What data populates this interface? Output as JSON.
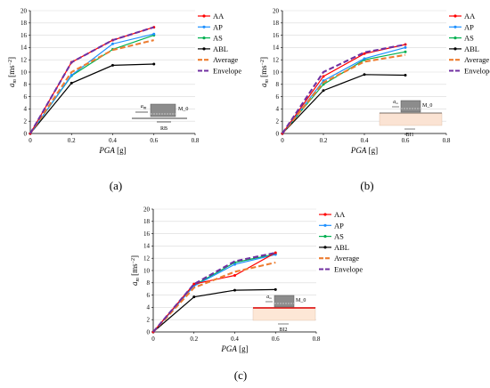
{
  "legend_entries": [
    {
      "label": "AA",
      "color": "#ff0000",
      "marker": "dot"
    },
    {
      "label": "AP",
      "color": "#1e90ff",
      "marker": "dot"
    },
    {
      "label": "AS",
      "color": "#00b050",
      "marker": "dot"
    },
    {
      "label": "ABL",
      "color": "#000000",
      "marker": "dot"
    },
    {
      "label": "Average",
      "color": "#ed7d31",
      "marker": "dash"
    },
    {
      "label": "Envelope",
      "color": "#7030a0",
      "marker": "dash"
    }
  ],
  "chart_data": [
    {
      "type": "line",
      "caption": "(a)",
      "xlabel": "PGA [g]",
      "ylabel": "a_m [ms^-2]",
      "xlim": [
        0,
        0.8
      ],
      "ylim": [
        0,
        20
      ],
      "xticks": [
        "0",
        "0.2",
        "0.4",
        "0.6",
        "0.8"
      ],
      "yticks": [
        "0",
        "2",
        "4",
        "6",
        "8",
        "10",
        "12",
        "14",
        "16",
        "18",
        "20"
      ],
      "x": [
        0,
        0.2,
        0.4,
        0.6
      ],
      "series": [
        {
          "name": "AA",
          "values": [
            0,
            11.6,
            15.2,
            17.3
          ]
        },
        {
          "name": "AP",
          "values": [
            0,
            9.5,
            14.6,
            16.2
          ]
        },
        {
          "name": "AS",
          "values": [
            0,
            9.4,
            13.7,
            16.0
          ]
        },
        {
          "name": "ABL",
          "values": [
            0,
            8.2,
            11.1,
            11.3
          ]
        },
        {
          "name": "Average",
          "values": [
            0,
            10.0,
            13.6,
            15.2
          ]
        },
        {
          "name": "Envelope",
          "values": [
            0,
            11.6,
            15.2,
            17.3
          ]
        }
      ],
      "inset": {
        "label_top": "a_m",
        "label_mass": "M_0",
        "label_bottom": "RB"
      }
    },
    {
      "type": "line",
      "caption": "(b)",
      "xlabel": "PGA [g]",
      "ylabel": "a_m [ms^-2]",
      "xlim": [
        0,
        0.8
      ],
      "ylim": [
        0,
        20
      ],
      "xticks": [
        "0",
        "0.2",
        "0.4",
        "0.6",
        "0.8"
      ],
      "yticks": [
        "0",
        "2",
        "4",
        "6",
        "8",
        "10",
        "12",
        "14",
        "16",
        "18",
        "20"
      ],
      "x": [
        0,
        0.2,
        0.4,
        0.6
      ],
      "series": [
        {
          "name": "AA",
          "values": [
            0,
            9.3,
            13.0,
            14.5
          ]
        },
        {
          "name": "AP",
          "values": [
            0,
            8.6,
            12.2,
            14.0
          ]
        },
        {
          "name": "AS",
          "values": [
            0,
            8.0,
            12.0,
            13.3
          ]
        },
        {
          "name": "ABL",
          "values": [
            0,
            7.0,
            9.6,
            9.5
          ]
        },
        {
          "name": "Average",
          "values": [
            0,
            8.3,
            11.7,
            12.8
          ]
        },
        {
          "name": "Envelope",
          "values": [
            0,
            10.0,
            13.2,
            14.5
          ]
        }
      ],
      "inset": {
        "label_top": "a_m",
        "label_mass": "M_0",
        "label_bottom": "BI1"
      }
    },
    {
      "type": "line",
      "caption": "(c)",
      "xlabel": "PGA [g]",
      "ylabel": "a_m [ms^-2]",
      "xlim": [
        0,
        0.8
      ],
      "ylim": [
        0,
        20
      ],
      "xticks": [
        "0",
        "0.2",
        "0.4",
        "0.6",
        "0.8"
      ],
      "yticks": [
        "0",
        "2",
        "4",
        "6",
        "8",
        "10",
        "12",
        "14",
        "16",
        "18",
        "20"
      ],
      "x": [
        0,
        0.2,
        0.4,
        0.6
      ],
      "series": [
        {
          "name": "AA",
          "values": [
            0,
            7.8,
            9.2,
            12.9
          ]
        },
        {
          "name": "AP",
          "values": [
            0,
            7.5,
            11.0,
            12.6
          ]
        },
        {
          "name": "AS",
          "values": [
            0,
            7.6,
            11.3,
            12.7
          ]
        },
        {
          "name": "ABL",
          "values": [
            0,
            5.7,
            6.8,
            6.9
          ]
        },
        {
          "name": "Average",
          "values": [
            0,
            7.2,
            9.8,
            11.3
          ]
        },
        {
          "name": "Envelope",
          "values": [
            0,
            7.8,
            11.5,
            12.9
          ]
        }
      ],
      "inset": {
        "label_top": "a_m",
        "label_mass": "M_0",
        "label_bottom": "BI2"
      }
    }
  ]
}
